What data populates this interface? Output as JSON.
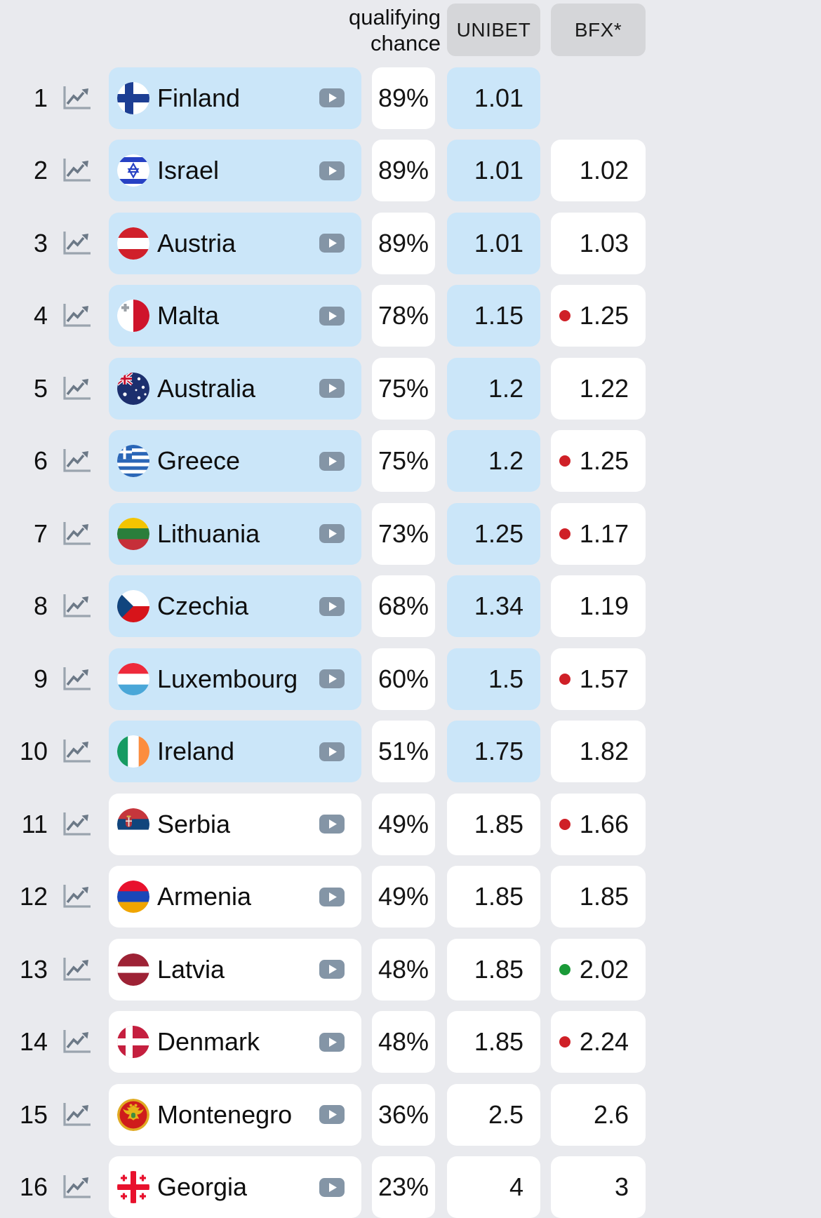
{
  "header": {
    "qualifying_line1": "qualifying",
    "qualifying_line2": "chance",
    "unibet_label": "UNIBET",
    "bfx_label": "BFX*"
  },
  "colors": {
    "page_background": "#e9eaee",
    "highlight_cell": "#cbe6f9",
    "plain_cell": "#ffffff",
    "header_box": "#d5d6d9",
    "red_dot": "#cf2027",
    "green_dot": "#1a9a38",
    "play_button": "#8495a6",
    "trend_axis": "#9aa4ae",
    "trend_line": "#6c7987"
  },
  "icons": {
    "trend": "trend-chart-icon",
    "play": "play-icon"
  },
  "rows": [
    {
      "rank": "1",
      "country": "Finland",
      "flag": "finland",
      "chance": "89%",
      "unibet": "1.01",
      "bfx": "",
      "dot": null,
      "highlight": true
    },
    {
      "rank": "2",
      "country": "Israel",
      "flag": "israel",
      "chance": "89%",
      "unibet": "1.01",
      "bfx": "1.02",
      "dot": null,
      "highlight": true
    },
    {
      "rank": "3",
      "country": "Austria",
      "flag": "austria",
      "chance": "89%",
      "unibet": "1.01",
      "bfx": "1.03",
      "dot": null,
      "highlight": true
    },
    {
      "rank": "4",
      "country": "Malta",
      "flag": "malta",
      "chance": "78%",
      "unibet": "1.15",
      "bfx": "1.25",
      "dot": "red",
      "highlight": true
    },
    {
      "rank": "5",
      "country": "Australia",
      "flag": "australia",
      "chance": "75%",
      "unibet": "1.2",
      "bfx": "1.22",
      "dot": null,
      "highlight": true
    },
    {
      "rank": "6",
      "country": "Greece",
      "flag": "greece",
      "chance": "75%",
      "unibet": "1.2",
      "bfx": "1.25",
      "dot": "red",
      "highlight": true
    },
    {
      "rank": "7",
      "country": "Lithuania",
      "flag": "lithuania",
      "chance": "73%",
      "unibet": "1.25",
      "bfx": "1.17",
      "dot": "red",
      "highlight": true
    },
    {
      "rank": "8",
      "country": "Czechia",
      "flag": "czechia",
      "chance": "68%",
      "unibet": "1.34",
      "bfx": "1.19",
      "dot": null,
      "highlight": true
    },
    {
      "rank": "9",
      "country": "Luxembourg",
      "flag": "luxembourg",
      "chance": "60%",
      "unibet": "1.5",
      "bfx": "1.57",
      "dot": "red",
      "highlight": true
    },
    {
      "rank": "10",
      "country": "Ireland",
      "flag": "ireland",
      "chance": "51%",
      "unibet": "1.75",
      "bfx": "1.82",
      "dot": null,
      "highlight": true
    },
    {
      "rank": "11",
      "country": "Serbia",
      "flag": "serbia",
      "chance": "49%",
      "unibet": "1.85",
      "bfx": "1.66",
      "dot": "red",
      "highlight": false
    },
    {
      "rank": "12",
      "country": "Armenia",
      "flag": "armenia",
      "chance": "49%",
      "unibet": "1.85",
      "bfx": "1.85",
      "dot": null,
      "highlight": false
    },
    {
      "rank": "13",
      "country": "Latvia",
      "flag": "latvia",
      "chance": "48%",
      "unibet": "1.85",
      "bfx": "2.02",
      "dot": "green",
      "highlight": false
    },
    {
      "rank": "14",
      "country": "Denmark",
      "flag": "denmark",
      "chance": "48%",
      "unibet": "1.85",
      "bfx": "2.24",
      "dot": "red",
      "highlight": false
    },
    {
      "rank": "15",
      "country": "Montenegro",
      "flag": "montenegro",
      "chance": "36%",
      "unibet": "2.5",
      "bfx": "2.6",
      "dot": null,
      "highlight": false
    },
    {
      "rank": "16",
      "country": "Georgia",
      "flag": "georgia",
      "chance": "23%",
      "unibet": "4",
      "bfx": "3",
      "dot": null,
      "highlight": false
    }
  ]
}
